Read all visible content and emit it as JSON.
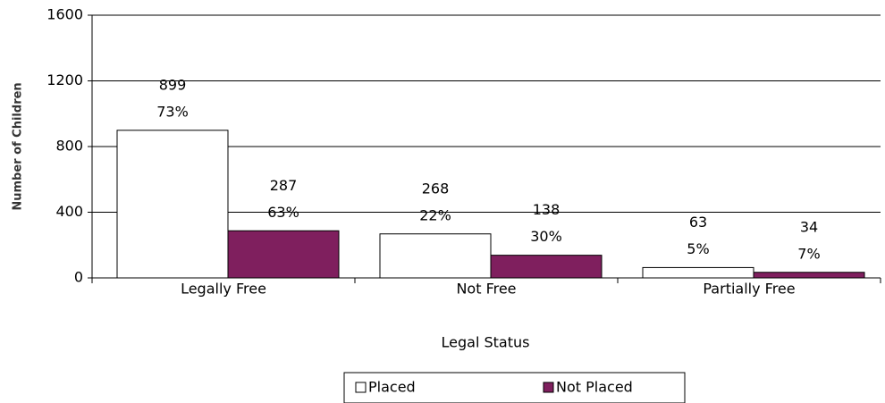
{
  "chart_data": {
    "type": "bar",
    "x_label": "Legal Status",
    "y_label": "Number of Children",
    "categories": [
      "Legally Free",
      "Not Free",
      "Partially Free"
    ],
    "series": [
      {
        "name": "Placed",
        "color": "#ffffff",
        "values": [
          899,
          268,
          63
        ],
        "percent_labels": [
          "73%",
          "22%",
          "5%"
        ]
      },
      {
        "name": "Not Placed",
        "color": "#7f1f5e",
        "values": [
          287,
          138,
          34
        ],
        "percent_labels": [
          "63%",
          "30%",
          "7%"
        ]
      }
    ],
    "ylim": [
      0,
      1600
    ],
    "yticks": [
      0,
      400,
      800,
      1200,
      1600
    ],
    "grid": true,
    "legend": "bottom"
  }
}
